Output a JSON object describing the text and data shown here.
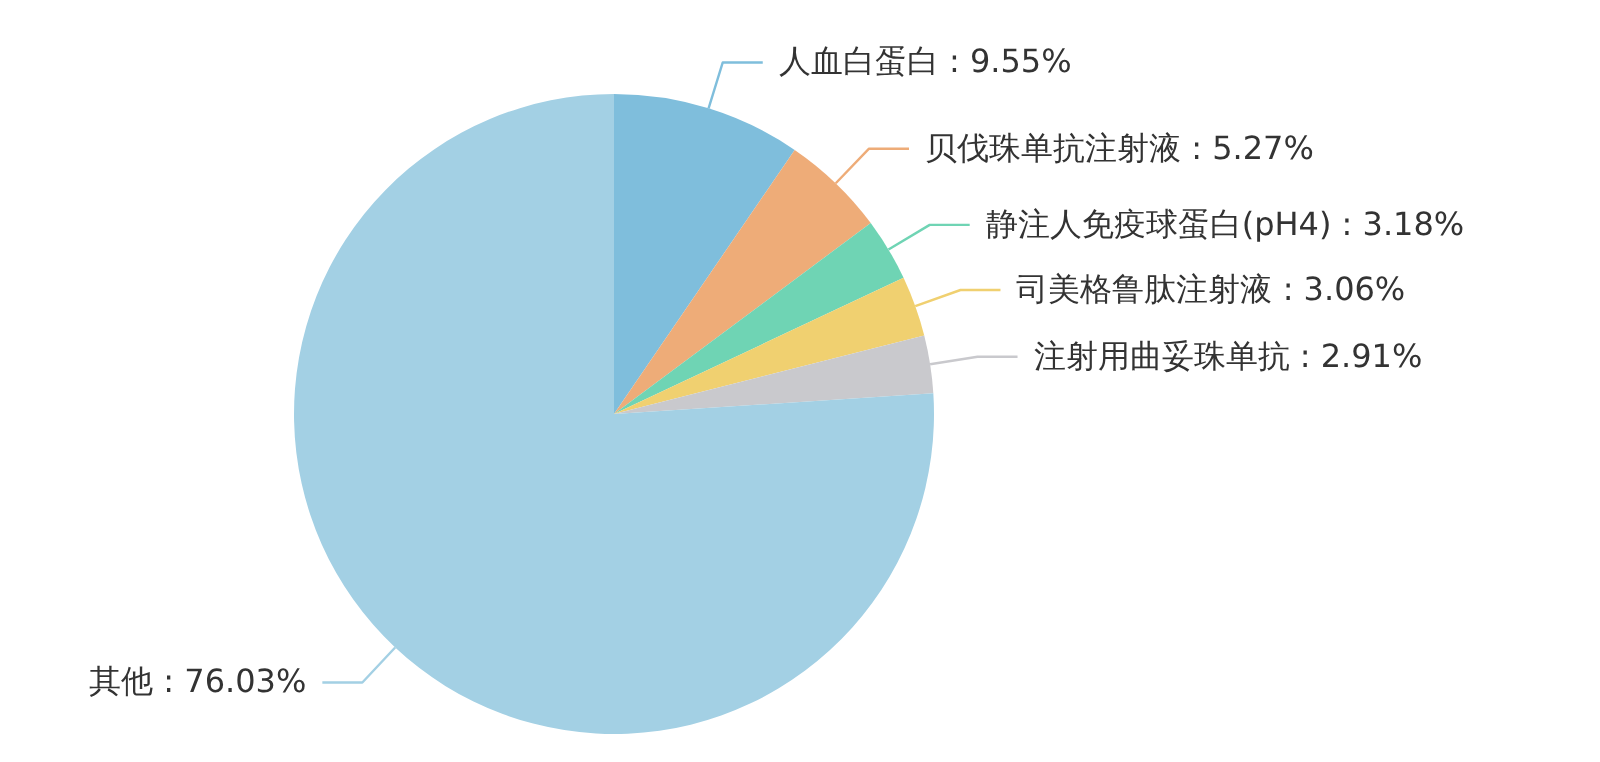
{
  "chart_data": {
    "type": "pie",
    "categories": [
      "人血白蛋白",
      "贝伐珠单抗注射液",
      "静注人免疫球蛋白(pH4)",
      "司美格鲁肽注射液",
      "注射用曲妥珠单抗",
      "其他"
    ],
    "values": [
      9.55,
      5.27,
      3.18,
      3.06,
      2.91,
      76.03
    ],
    "value_labels": [
      "9.55%",
      "5.27%",
      "3.18%",
      "3.06%",
      "2.91%",
      "76.03%"
    ],
    "colors": [
      "#7fbedc",
      "#eeac78",
      "#6fd4b4",
      "#f0d070",
      "#c9c9cd",
      "#a3d0e4"
    ]
  }
}
